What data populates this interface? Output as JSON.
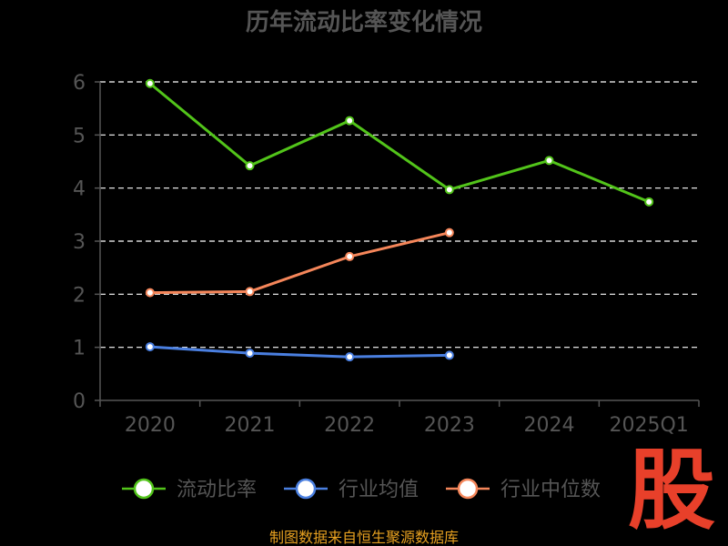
{
  "chart_data": {
    "type": "line",
    "title": "历年流动比率变化情况",
    "categories": [
      "2020",
      "2021",
      "2022",
      "2023",
      "2024",
      "2025Q1"
    ],
    "ylim": [
      0,
      6
    ],
    "yticks": [
      "0",
      "1",
      "2",
      "3",
      "4",
      "5",
      "6"
    ],
    "grid": "horizontal dashed",
    "legend_position": "bottom",
    "series": [
      {
        "name": "流动比率",
        "color": "#52c41a",
        "values": [
          5.97,
          4.42,
          5.27,
          3.97,
          4.52,
          3.74
        ]
      },
      {
        "name": "行业均值",
        "color": "#4a7fe0",
        "values": [
          1.01,
          0.89,
          0.82,
          0.85,
          null,
          null
        ]
      },
      {
        "name": "行业中位数",
        "color": "#f5865a",
        "values": [
          2.03,
          2.05,
          2.71,
          3.16,
          null,
          null
        ]
      }
    ]
  },
  "footer": "制图数据来自恒生聚源数据库",
  "logo_text": "股"
}
